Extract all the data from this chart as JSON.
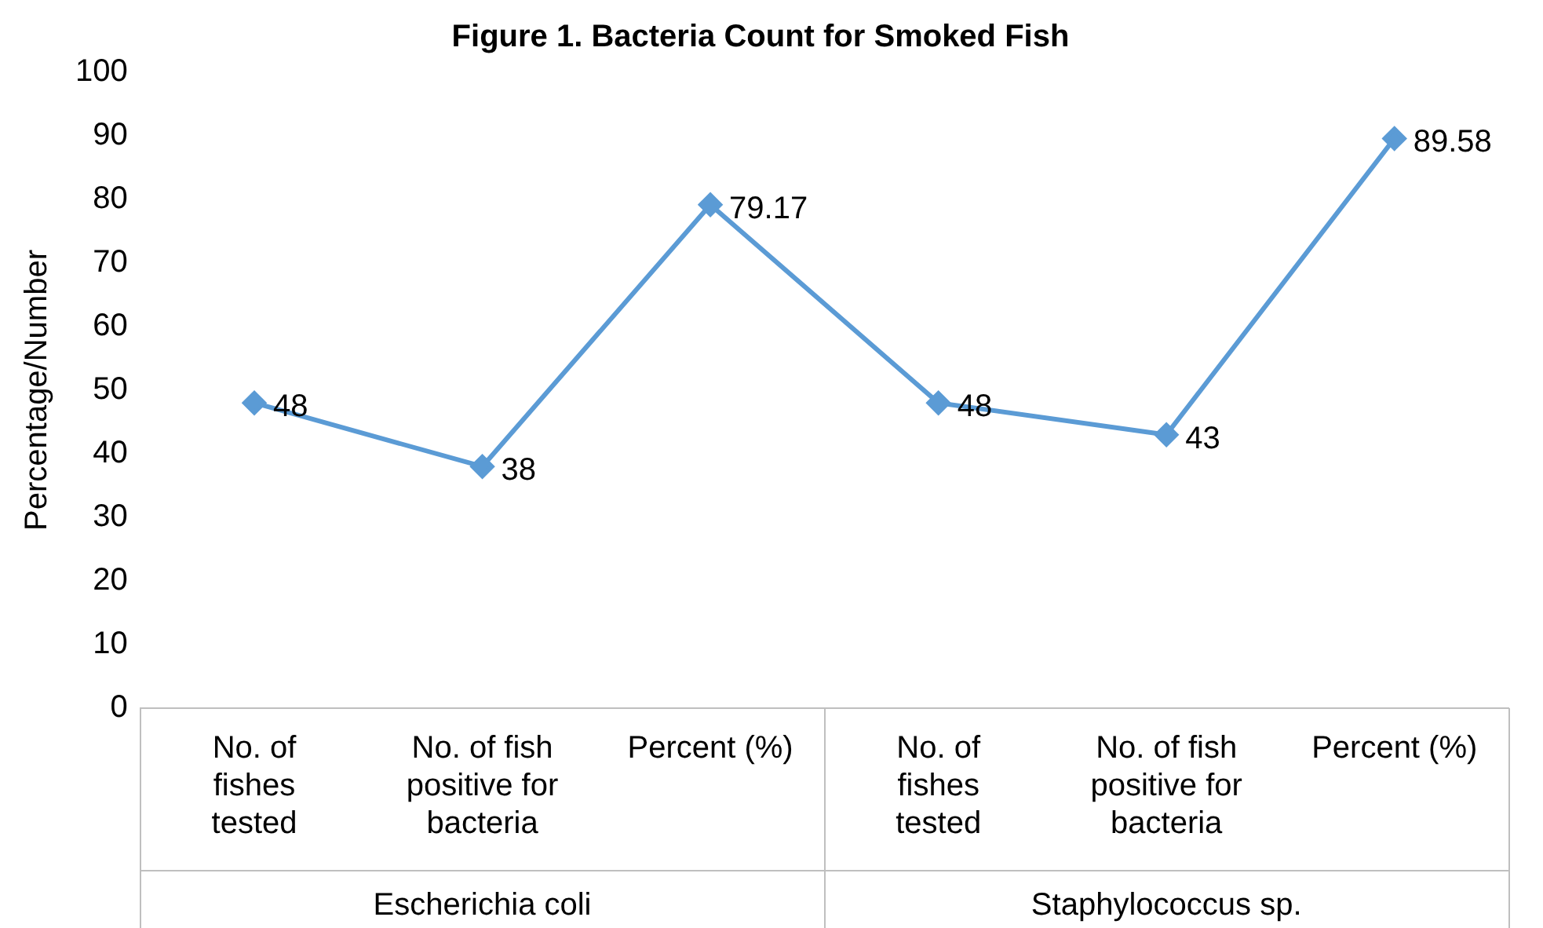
{
  "chart_data": {
    "type": "line",
    "title": "Figure 1. Bacteria Count for Smoked Fish",
    "ylabel": "Percentage/Number",
    "categories": [
      "No. of\nfishes\ntested",
      "No. of fish\npositive for\nbacteria",
      "Percent (%)",
      "No. of\nfishes\ntested",
      "No. of fish\npositive for\nbacteria",
      "Percent (%)"
    ],
    "annotations": [
      "Escherichia coli",
      "Staphylococcus sp."
    ],
    "series": [
      {
        "color": "#5b9bd5",
        "values": [
          48,
          38,
          79.17,
          48,
          43,
          89.58
        ]
      }
    ],
    "ylim": [
      0,
      100
    ],
    "yticks": [
      0,
      10,
      20,
      30,
      40,
      50,
      60,
      70,
      80,
      90,
      100
    ],
    "data_labels": true,
    "marker": "diamond",
    "line_style": "solid",
    "grid": false,
    "legend": false
  }
}
